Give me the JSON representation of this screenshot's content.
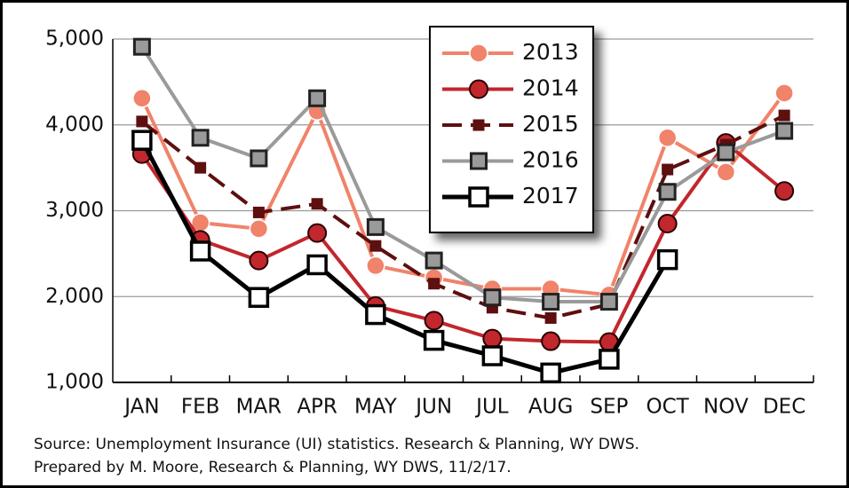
{
  "chart_data": {
    "type": "line",
    "categories": [
      "JAN",
      "FEB",
      "MAR",
      "APR",
      "MAY",
      "JUN",
      "JUL",
      "AUG",
      "SEP",
      "OCT",
      "NOV",
      "DEC"
    ],
    "series": [
      {
        "name": "2013",
        "color": "#f0836a",
        "marker": "circle",
        "values": [
          4310,
          2860,
          2790,
          4160,
          2360,
          2220,
          2090,
          2090,
          2020,
          3850,
          3450,
          4370
        ]
      },
      {
        "name": "2014",
        "color": "#c1272d",
        "marker": "circle",
        "values": [
          3660,
          2660,
          2420,
          2740,
          1890,
          1720,
          1510,
          1480,
          1470,
          2850,
          3790,
          3230
        ]
      },
      {
        "name": "2015",
        "color": "#5e0f0f",
        "marker": "square",
        "dashed": true,
        "values": [
          4040,
          3500,
          2980,
          3080,
          2590,
          2150,
          1870,
          1750,
          1910,
          3480,
          3770,
          4110
        ]
      },
      {
        "name": "2016",
        "color": "#9a9a9a",
        "marker": "square",
        "values": [
          4910,
          3850,
          3610,
          4310,
          2810,
          2420,
          1990,
          1940,
          1940,
          3220,
          3680,
          3930
        ]
      },
      {
        "name": "2017",
        "color": "#000000",
        "marker": "open-square",
        "values": [
          3820,
          2530,
          1990,
          2370,
          1790,
          1490,
          1310,
          1110,
          1270,
          2430,
          null,
          null
        ]
      }
    ],
    "ylim": [
      1000,
      5000
    ],
    "yticks": [
      {
        "value": 1000,
        "label": "1,000"
      },
      {
        "value": 2000,
        "label": "2,000"
      },
      {
        "value": 3000,
        "label": "3,000"
      },
      {
        "value": 4000,
        "label": "4,000"
      },
      {
        "value": 5000,
        "label": "5,000"
      }
    ],
    "grid": true,
    "legend": "upper center",
    "source": [
      "Source: Unemployment Insurance (UI) statistics. Research & Planning, WY DWS.",
      "Prepared by M. Moore, Research & Planning, WY DWS, 11/2/17."
    ]
  }
}
